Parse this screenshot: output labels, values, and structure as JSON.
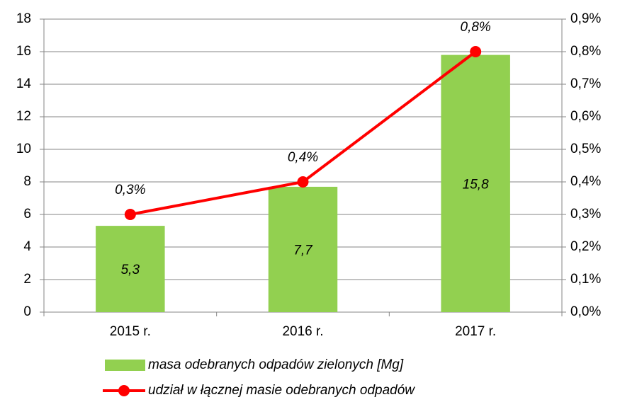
{
  "chart_data": {
    "type": "bar",
    "categories": [
      "2015 r.",
      "2016 r.",
      "2017 r."
    ],
    "series": [
      {
        "name": "masa odebranych odpadów zielonych [Mg]",
        "type": "bar",
        "color": "#92d050",
        "values": [
          5.3,
          7.7,
          15.8
        ],
        "value_labels": [
          "5,3",
          "7,7",
          "15,8"
        ]
      },
      {
        "name": "udział w łącznej masie odebranych odpadów",
        "type": "line",
        "axis": "y2",
        "color": "#ff0000",
        "values": [
          0.3,
          0.4,
          0.8
        ],
        "value_labels": [
          "0,3%",
          "0,4%",
          "0,8%"
        ]
      }
    ],
    "ylim": [
      0,
      18
    ],
    "yticks": [
      0,
      2,
      4,
      6,
      8,
      10,
      12,
      14,
      16,
      18
    ],
    "y2lim": [
      0,
      0.9
    ],
    "y2ticks": [
      {
        "value": 0,
        "label": "0,0%"
      },
      {
        "value": 0.1,
        "label": "0,1%"
      },
      {
        "value": 0.2,
        "label": "0,2%"
      },
      {
        "value": 0.3,
        "label": "0,3%"
      },
      {
        "value": 0.4,
        "label": "0,4%"
      },
      {
        "value": 0.5,
        "label": "0,5%"
      },
      {
        "value": 0.6,
        "label": "0,6%"
      },
      {
        "value": 0.7,
        "label": "0,7%"
      },
      {
        "value": 0.8,
        "label": "0,8%"
      },
      {
        "value": 0.9,
        "label": "0,9%"
      }
    ],
    "grid": true,
    "legend": "bottom"
  }
}
